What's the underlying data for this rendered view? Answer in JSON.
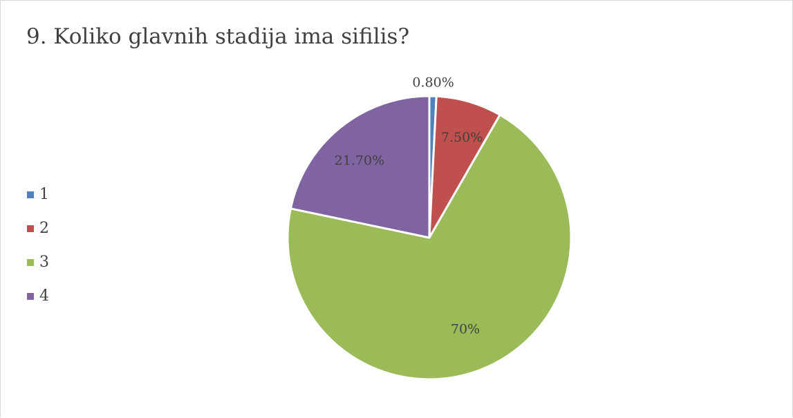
{
  "chart_data": {
    "type": "pie",
    "title": "9. Koliko glavnih stadija ima sifilis?",
    "categories": [
      "1",
      "2",
      "3",
      "4"
    ],
    "values": [
      0.8,
      7.5,
      70,
      21.7
    ],
    "data_labels": [
      "0.80%",
      "7.50%",
      "70%",
      "21.70%"
    ],
    "colors": [
      "#4f81bd",
      "#c0504d",
      "#9bbb59",
      "#8064a2"
    ],
    "legend_position": "left",
    "start_angle": "top, clockwise"
  }
}
